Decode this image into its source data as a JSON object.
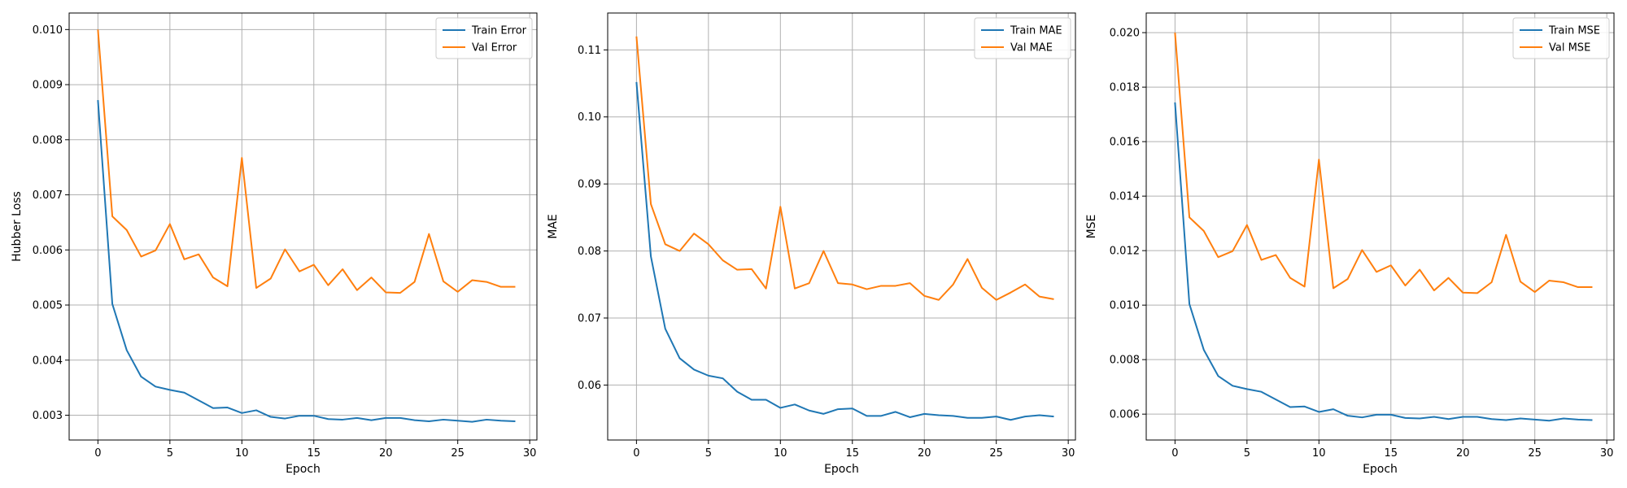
{
  "chart_data": [
    {
      "type": "line",
      "xlabel": "Epoch",
      "ylabel": "Hubber Loss",
      "xlim": [
        -2,
        30.5
      ],
      "ylim": [
        0.00255,
        0.0103
      ],
      "xticks": [
        0,
        5,
        10,
        15,
        20,
        25,
        30
      ],
      "yticks": [
        0.003,
        0.004,
        0.005,
        0.006,
        0.007,
        0.008,
        0.009,
        0.01
      ],
      "ytick_format": 3,
      "grid": true,
      "legend_position": "upper-right",
      "x": [
        0,
        1,
        2,
        3,
        4,
        5,
        6,
        7,
        8,
        9,
        10,
        11,
        12,
        13,
        14,
        15,
        16,
        17,
        18,
        19,
        20,
        21,
        22,
        23,
        24,
        25,
        26,
        27,
        28,
        29
      ],
      "series": [
        {
          "name": "Train Error",
          "color": "#1f77b4",
          "values": [
            0.00872,
            0.00502,
            0.00418,
            0.0037,
            0.00352,
            0.00346,
            0.00341,
            0.00327,
            0.00313,
            0.00314,
            0.00304,
            0.00309,
            0.00297,
            0.00294,
            0.00299,
            0.00299,
            0.00293,
            0.00292,
            0.00295,
            0.00291,
            0.00295,
            0.00295,
            0.00291,
            0.00289,
            0.00292,
            0.0029,
            0.00288,
            0.00292,
            0.0029,
            0.00289
          ]
        },
        {
          "name": "Val Error",
          "color": "#ff7f0e",
          "values": [
            0.01,
            0.00661,
            0.00636,
            0.00588,
            0.00599,
            0.00647,
            0.00583,
            0.00592,
            0.0055,
            0.00534,
            0.00767,
            0.00531,
            0.00548,
            0.00601,
            0.00561,
            0.00573,
            0.00536,
            0.00565,
            0.00527,
            0.0055,
            0.00523,
            0.00522,
            0.00542,
            0.00629,
            0.00543,
            0.00524,
            0.00545,
            0.00542,
            0.00533,
            0.00533
          ]
        }
      ]
    },
    {
      "type": "line",
      "xlabel": "Epoch",
      "ylabel": "MAE",
      "xlim": [
        -2,
        30.5
      ],
      "ylim": [
        0.0518,
        0.1155
      ],
      "xticks": [
        0,
        5,
        10,
        15,
        20,
        25,
        30
      ],
      "yticks": [
        0.06,
        0.07,
        0.08,
        0.09,
        0.1,
        0.11
      ],
      "ytick_format": 2,
      "grid": true,
      "legend_position": "upper-right",
      "x": [
        0,
        1,
        2,
        3,
        4,
        5,
        6,
        7,
        8,
        9,
        10,
        11,
        12,
        13,
        14,
        15,
        16,
        17,
        18,
        19,
        20,
        21,
        22,
        23,
        24,
        25,
        26,
        27,
        28,
        29
      ],
      "series": [
        {
          "name": "Train MAE",
          "color": "#1f77b4",
          "values": [
            0.1052,
            0.0792,
            0.0684,
            0.064,
            0.0623,
            0.0614,
            0.061,
            0.059,
            0.0578,
            0.0578,
            0.0566,
            0.0571,
            0.0562,
            0.0557,
            0.0564,
            0.0565,
            0.0554,
            0.0554,
            0.056,
            0.0552,
            0.0557,
            0.0555,
            0.0554,
            0.0551,
            0.0551,
            0.0553,
            0.0548,
            0.0553,
            0.0555,
            0.0553
          ]
        },
        {
          "name": "Val MAE",
          "color": "#ff7f0e",
          "values": [
            0.112,
            0.087,
            0.081,
            0.08,
            0.0826,
            0.081,
            0.0786,
            0.0772,
            0.0773,
            0.0744,
            0.0866,
            0.0744,
            0.0752,
            0.08,
            0.0752,
            0.075,
            0.0743,
            0.0748,
            0.0748,
            0.0752,
            0.0733,
            0.0727,
            0.075,
            0.0788,
            0.0745,
            0.0727,
            0.0738,
            0.075,
            0.0732,
            0.0728
          ]
        }
      ]
    },
    {
      "type": "line",
      "xlabel": "Epoch",
      "ylabel": "MSE",
      "xlim": [
        -2,
        30.5
      ],
      "ylim": [
        0.00505,
        0.02072
      ],
      "xticks": [
        0,
        5,
        10,
        15,
        20,
        25,
        30
      ],
      "yticks": [
        0.006,
        0.008,
        0.01,
        0.012,
        0.014,
        0.016,
        0.018,
        0.02
      ],
      "ytick_format": 3,
      "grid": true,
      "legend_position": "upper-right",
      "x": [
        0,
        1,
        2,
        3,
        4,
        5,
        6,
        7,
        8,
        9,
        10,
        11,
        12,
        13,
        14,
        15,
        16,
        17,
        18,
        19,
        20,
        21,
        22,
        23,
        24,
        25,
        26,
        27,
        28,
        29
      ],
      "series": [
        {
          "name": "Train MSE",
          "color": "#1f77b4",
          "values": [
            0.01744,
            0.01004,
            0.00836,
            0.0074,
            0.00704,
            0.00692,
            0.00682,
            0.00654,
            0.00626,
            0.00628,
            0.00608,
            0.00618,
            0.00594,
            0.00588,
            0.00598,
            0.00598,
            0.00586,
            0.00584,
            0.0059,
            0.00582,
            0.0059,
            0.0059,
            0.00582,
            0.00578,
            0.00584,
            0.0058,
            0.00576,
            0.00584,
            0.0058,
            0.00578
          ]
        },
        {
          "name": "Val MSE",
          "color": "#ff7f0e",
          "values": [
            0.02,
            0.01322,
            0.01272,
            0.01176,
            0.01198,
            0.01294,
            0.01166,
            0.01184,
            0.011,
            0.01068,
            0.01534,
            0.01062,
            0.01096,
            0.01202,
            0.01122,
            0.01146,
            0.01072,
            0.0113,
            0.01054,
            0.011,
            0.01046,
            0.01044,
            0.01084,
            0.01258,
            0.01086,
            0.01048,
            0.0109,
            0.01084,
            0.01066,
            0.01066
          ]
        }
      ]
    }
  ]
}
